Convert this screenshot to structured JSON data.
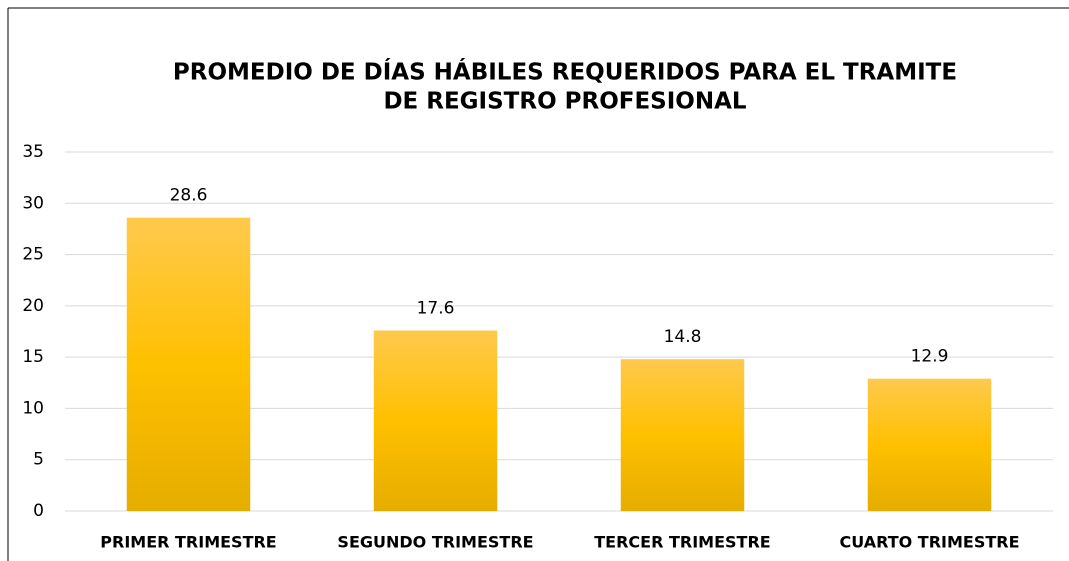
{
  "chart_data": {
    "type": "bar",
    "title": [
      "PROMEDIO DE DÍAS HÁBILES REQUERIDOS PARA EL TRAMITE",
      "DE REGISTRO PROFESIONAL"
    ],
    "categories": [
      "PRIMER TRIMESTRE",
      "SEGUNDO TRIMESTRE",
      "TERCER TRIMESTRE",
      "CUARTO TRIMESTRE"
    ],
    "values": [
      28.6,
      17.6,
      14.8,
      12.9
    ],
    "color": "#ffc000",
    "ylim": [
      0,
      35
    ],
    "yticks": [
      0,
      5,
      10,
      15,
      20,
      25,
      30,
      35
    ],
    "grid": true
  }
}
